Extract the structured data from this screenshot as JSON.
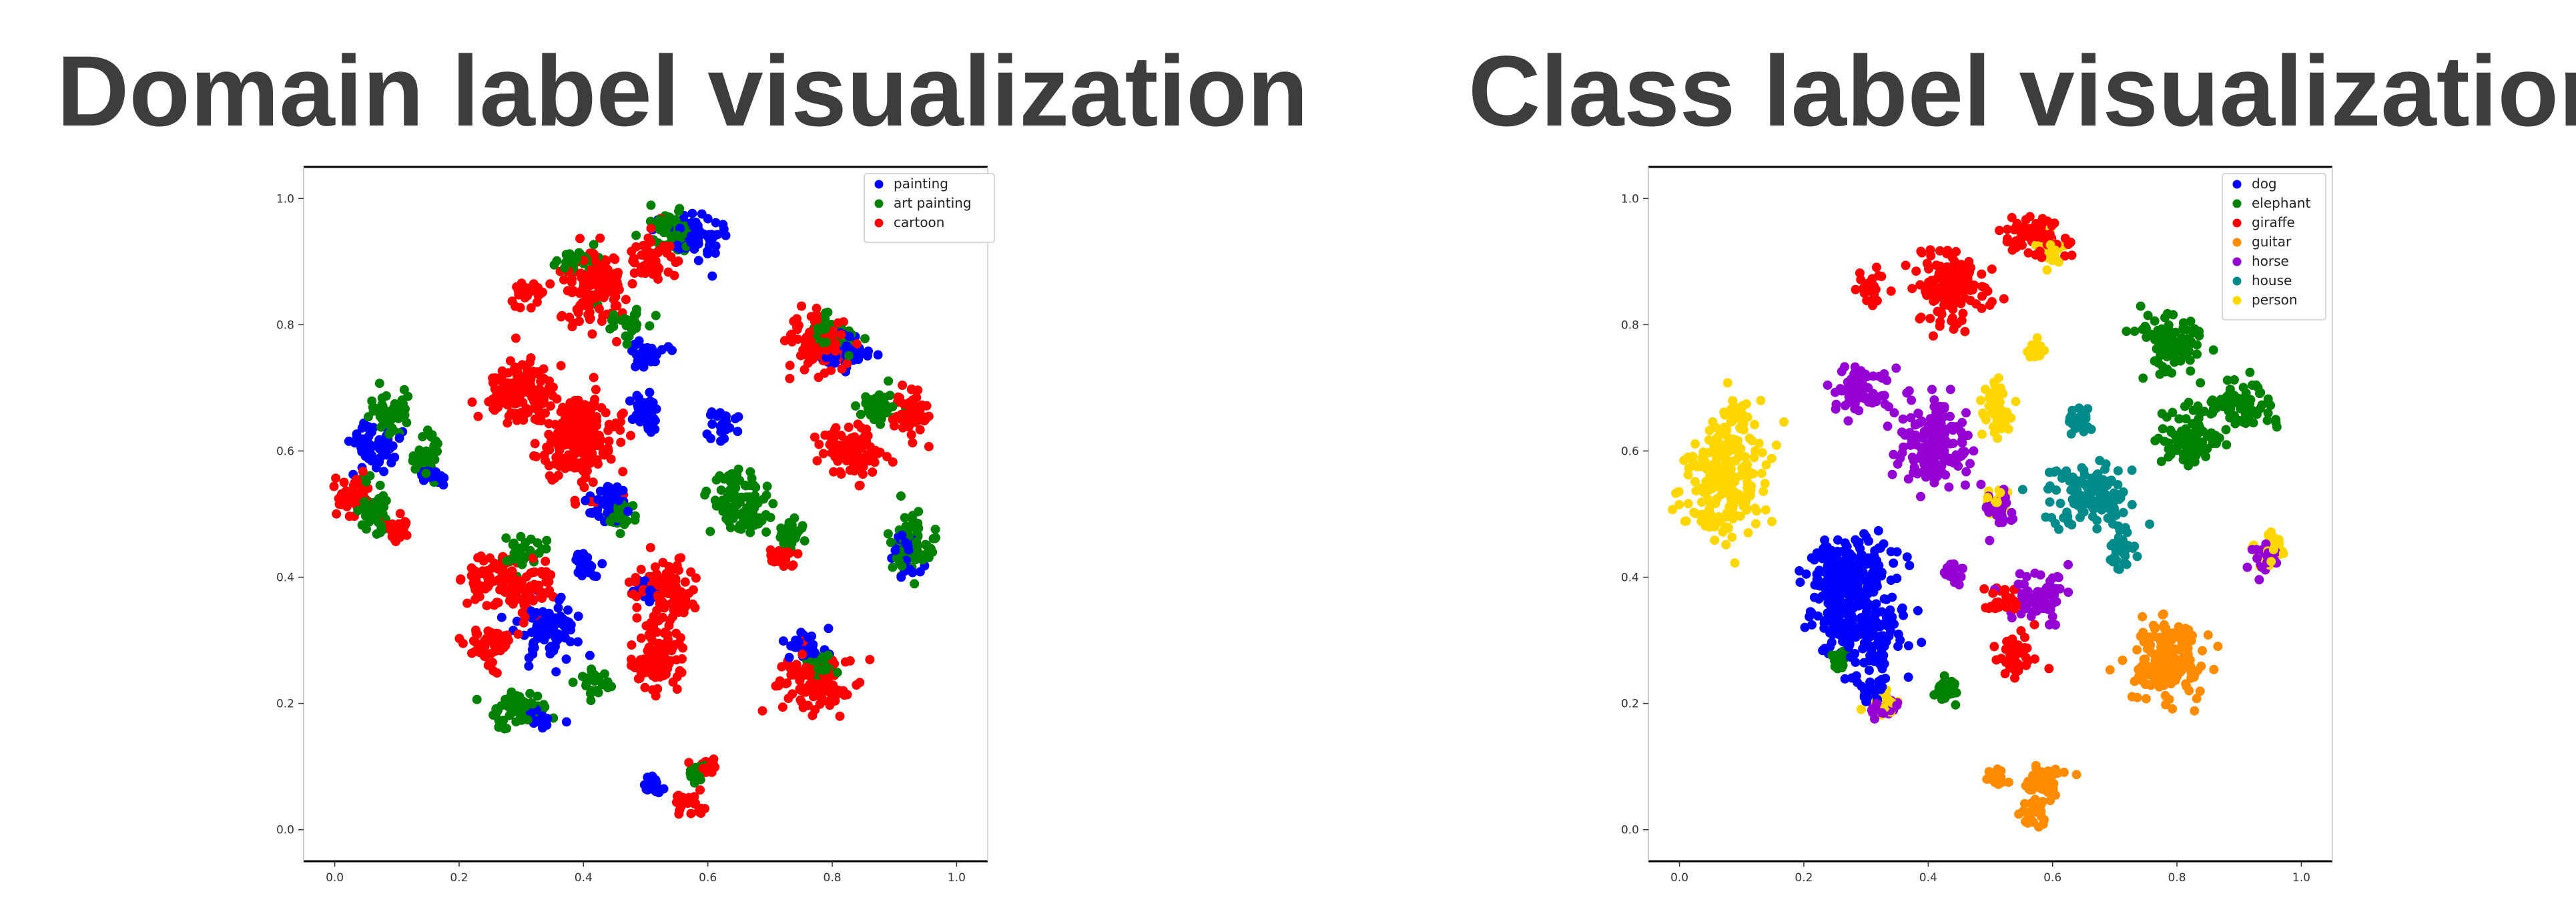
{
  "panels": {
    "left": {
      "title": "Domain label visualization"
    },
    "right": {
      "title": "Class label visualization"
    }
  },
  "chart_data": [
    {
      "type": "scatter",
      "title": "Domain label visualization",
      "xlabel": "",
      "ylabel": "",
      "xlim": [
        -0.05,
        1.05
      ],
      "ylim": [
        -0.05,
        1.05
      ],
      "xticks": [
        "0.0",
        "0.2",
        "0.4",
        "0.6",
        "0.8",
        "1.0"
      ],
      "yticks": [
        "0.0",
        "0.2",
        "0.4",
        "0.6",
        "0.8",
        "1.0"
      ],
      "grid": false,
      "legend_position": "top-right",
      "series": [
        {
          "name": "painting",
          "color": "#0000ff",
          "clusters": [
            [
              0.58,
              0.94,
              0.035,
              0.03
            ],
            [
              0.5,
              0.75,
              0.025,
              0.02
            ],
            [
              0.5,
              0.66,
              0.02,
              0.03
            ],
            [
              0.62,
              0.64,
              0.02,
              0.02
            ],
            [
              0.82,
              0.76,
              0.03,
              0.025
            ],
            [
              0.92,
              0.44,
              0.02,
              0.03
            ],
            [
              0.06,
              0.61,
              0.03,
              0.035
            ],
            [
              0.15,
              0.56,
              0.02,
              0.02
            ],
            [
              0.44,
              0.52,
              0.025,
              0.03
            ],
            [
              0.4,
              0.42,
              0.02,
              0.015
            ],
            [
              0.5,
              0.38,
              0.02,
              0.015
            ],
            [
              0.34,
              0.32,
              0.04,
              0.035
            ],
            [
              0.33,
              0.18,
              0.015,
              0.015
            ],
            [
              0.76,
              0.29,
              0.03,
              0.02
            ],
            [
              0.51,
              0.07,
              0.01,
              0.01
            ]
          ],
          "points": []
        },
        {
          "name": "art painting",
          "color": "#008000",
          "clusters": [
            [
              0.54,
              0.95,
              0.03,
              0.03
            ],
            [
              0.39,
              0.9,
              0.025,
              0.02
            ],
            [
              0.47,
              0.8,
              0.025,
              0.02
            ],
            [
              0.8,
              0.78,
              0.03,
              0.025
            ],
            [
              0.88,
              0.67,
              0.03,
              0.02
            ],
            [
              0.09,
              0.66,
              0.025,
              0.03
            ],
            [
              0.15,
              0.6,
              0.02,
              0.03
            ],
            [
              0.06,
              0.51,
              0.025,
              0.04
            ],
            [
              0.65,
              0.52,
              0.04,
              0.04
            ],
            [
              0.73,
              0.47,
              0.02,
              0.02
            ],
            [
              0.93,
              0.45,
              0.03,
              0.04
            ],
            [
              0.46,
              0.5,
              0.025,
              0.02
            ],
            [
              0.3,
              0.44,
              0.03,
              0.02
            ],
            [
              0.3,
              0.19,
              0.04,
              0.025
            ],
            [
              0.42,
              0.23,
              0.02,
              0.02
            ],
            [
              0.78,
              0.26,
              0.02,
              0.02
            ],
            [
              0.58,
              0.09,
              0.01,
              0.01
            ]
          ],
          "points": []
        },
        {
          "name": "cartoon",
          "color": "#ff0000",
          "clusters": [
            [
              0.31,
              0.85,
              0.025,
              0.02
            ],
            [
              0.42,
              0.86,
              0.04,
              0.05
            ],
            [
              0.51,
              0.9,
              0.03,
              0.03
            ],
            [
              0.78,
              0.77,
              0.04,
              0.04
            ],
            [
              0.3,
              0.69,
              0.05,
              0.045
            ],
            [
              0.39,
              0.62,
              0.05,
              0.065
            ],
            [
              0.83,
              0.6,
              0.04,
              0.04
            ],
            [
              0.93,
              0.66,
              0.03,
              0.03
            ],
            [
              0.03,
              0.53,
              0.025,
              0.03
            ],
            [
              0.1,
              0.48,
              0.02,
              0.02
            ],
            [
              0.25,
              0.4,
              0.03,
              0.03
            ],
            [
              0.31,
              0.38,
              0.04,
              0.03
            ],
            [
              0.25,
              0.29,
              0.03,
              0.025
            ],
            [
              0.53,
              0.38,
              0.04,
              0.04
            ],
            [
              0.72,
              0.43,
              0.02,
              0.015
            ],
            [
              0.52,
              0.27,
              0.035,
              0.045
            ],
            [
              0.77,
              0.23,
              0.05,
              0.04
            ],
            [
              0.57,
              0.04,
              0.02,
              0.02
            ],
            [
              0.6,
              0.1,
              0.015,
              0.01
            ]
          ],
          "points": []
        }
      ]
    },
    {
      "type": "scatter",
      "title": "Class label visualization",
      "xlabel": "",
      "ylabel": "",
      "xlim": [
        -0.05,
        1.05
      ],
      "ylim": [
        -0.05,
        1.05
      ],
      "xticks": [
        "0.0",
        "0.2",
        "0.4",
        "0.6",
        "0.8",
        "1.0"
      ],
      "yticks": [
        "0.0",
        "0.2",
        "0.4",
        "0.6",
        "0.8",
        "1.0"
      ],
      "grid": false,
      "legend_position": "top-right",
      "series": [
        {
          "name": "dog",
          "color": "#0000ff",
          "clusters": [
            [
              0.28,
              0.42,
              0.05,
              0.04
            ],
            [
              0.3,
              0.32,
              0.06,
              0.05
            ],
            [
              0.25,
              0.38,
              0.04,
              0.04
            ],
            [
              0.31,
              0.22,
              0.025,
              0.02
            ]
          ],
          "points": []
        },
        {
          "name": "elephant",
          "color": "#008000",
          "clusters": [
            [
              0.79,
              0.77,
              0.04,
              0.04
            ],
            [
              0.9,
              0.67,
              0.04,
              0.035
            ],
            [
              0.82,
              0.62,
              0.04,
              0.04
            ],
            [
              0.43,
              0.22,
              0.015,
              0.015
            ],
            [
              0.26,
              0.27,
              0.01,
              0.01
            ]
          ],
          "points": []
        },
        {
          "name": "giraffe",
          "color": "#ff0000",
          "clusters": [
            [
              0.31,
              0.86,
              0.02,
              0.02
            ],
            [
              0.44,
              0.86,
              0.05,
              0.05
            ],
            [
              0.57,
              0.94,
              0.04,
              0.03
            ],
            [
              0.52,
              0.36,
              0.025,
              0.02
            ],
            [
              0.54,
              0.28,
              0.025,
              0.03
            ]
          ],
          "points": []
        },
        {
          "name": "guitar",
          "color": "#ff8c00",
          "clusters": [
            [
              0.78,
              0.26,
              0.05,
              0.05
            ],
            [
              0.8,
              0.31,
              0.03,
              0.015
            ],
            [
              0.59,
              0.07,
              0.03,
              0.025
            ],
            [
              0.57,
              0.03,
              0.015,
              0.02
            ],
            [
              0.51,
              0.08,
              0.015,
              0.01
            ]
          ],
          "points": []
        },
        {
          "name": "horse",
          "color": "#9400d3",
          "clusters": [
            [
              0.29,
              0.7,
              0.04,
              0.03
            ],
            [
              0.41,
              0.61,
              0.05,
              0.055
            ],
            [
              0.51,
              0.51,
              0.025,
              0.025
            ],
            [
              0.58,
              0.37,
              0.04,
              0.03
            ],
            [
              0.44,
              0.41,
              0.015,
              0.015
            ],
            [
              0.94,
              0.43,
              0.02,
              0.02
            ],
            [
              0.33,
              0.19,
              0.02,
              0.015
            ]
          ],
          "points": []
        },
        {
          "name": "house",
          "color": "#008b8b",
          "clusters": [
            [
              0.66,
              0.53,
              0.05,
              0.04
            ],
            [
              0.71,
              0.45,
              0.02,
              0.03
            ],
            [
              0.64,
              0.65,
              0.015,
              0.015
            ]
          ],
          "points": []
        },
        {
          "name": "person",
          "color": "#ffd700",
          "clusters": [
            [
              0.07,
              0.56,
              0.05,
              0.08
            ],
            [
              0.09,
              0.66,
              0.02,
              0.02
            ],
            [
              0.51,
              0.67,
              0.02,
              0.04
            ],
            [
              0.57,
              0.76,
              0.015,
              0.01
            ],
            [
              0.51,
              0.52,
              0.015,
              0.015
            ],
            [
              0.95,
              0.45,
              0.02,
              0.02
            ],
            [
              0.33,
              0.2,
              0.02,
              0.015
            ],
            [
              0.6,
              0.92,
              0.02,
              0.02
            ]
          ],
          "points": []
        }
      ]
    }
  ]
}
